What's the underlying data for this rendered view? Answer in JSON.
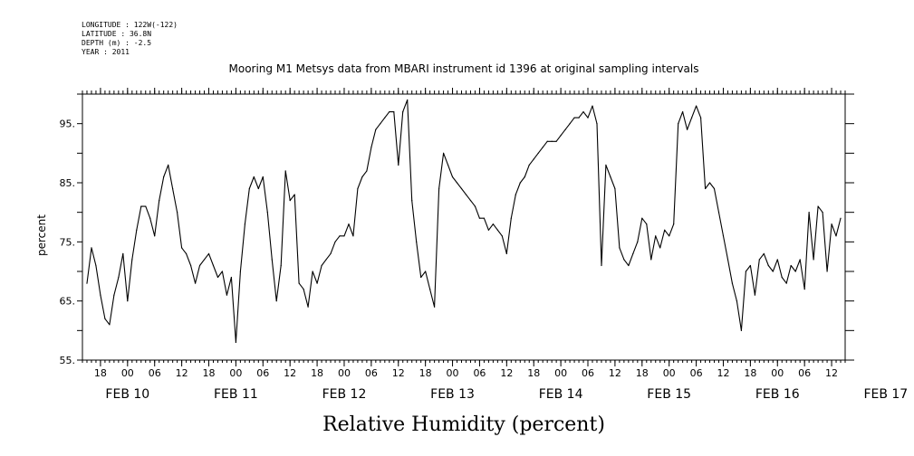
{
  "metadata": {
    "longitude": "LONGITUDE : 122W(-122)",
    "latitude": "LATITUDE : 36.8N",
    "depth": "DEPTH (m) : -2.5",
    "year": "YEAR : 2011"
  },
  "chart_data": {
    "type": "line",
    "title": "Mooring M1 Metsys data from MBARI instrument id 1396 at original sampling intervals",
    "xlabel": "Relative Humidity (percent)",
    "ylabel": "percent",
    "ylim": [
      55,
      100
    ],
    "yticks": [
      55,
      65,
      75,
      85,
      95
    ],
    "ytick_labels": [
      "55.",
      "65.",
      "75.",
      "85.",
      "95."
    ],
    "xlim": [
      14,
      183
    ],
    "xticks": [
      18,
      24,
      30,
      36,
      42,
      48,
      54,
      60,
      66,
      72,
      78,
      84,
      90,
      96,
      102,
      108,
      114,
      120,
      126,
      132,
      138,
      144,
      150,
      156,
      162,
      168,
      174,
      180
    ],
    "xtick_labels": [
      "18",
      "00",
      "06",
      "12",
      "18",
      "00",
      "06",
      "12",
      "18",
      "00",
      "06",
      "12",
      "18",
      "00",
      "06",
      "12",
      "18",
      "00",
      "06",
      "12",
      "18",
      "00",
      "06",
      "12",
      "18",
      "00",
      "06",
      "12"
    ],
    "day_labels": [
      {
        "x": 24,
        "label": "FEB 10"
      },
      {
        "x": 48,
        "label": "FEB 11"
      },
      {
        "x": 72,
        "label": "FEB 12"
      },
      {
        "x": 96,
        "label": "FEB 13"
      },
      {
        "x": 120,
        "label": "FEB 14"
      },
      {
        "x": 144,
        "label": "FEB 15"
      },
      {
        "x": 168,
        "label": "FEB 16"
      },
      {
        "x": 192,
        "label": "FEB 17"
      }
    ],
    "x_units": "hours after 00:00 FEB 10",
    "series": [
      {
        "x": [
          15,
          16,
          17,
          18,
          19,
          20,
          21,
          22,
          23,
          24,
          25,
          26,
          27,
          28,
          29,
          30,
          31,
          32,
          33,
          34,
          35,
          36,
          37,
          38,
          39,
          40,
          41,
          42,
          43,
          44,
          45,
          46,
          47,
          48,
          49,
          50,
          51,
          52,
          53,
          54,
          55,
          56,
          57,
          58,
          59,
          60,
          61,
          62,
          63,
          64,
          65,
          66,
          67,
          68,
          69,
          70,
          71,
          72,
          73,
          74,
          75,
          76,
          77,
          78,
          79,
          80,
          81,
          82,
          83,
          84,
          85,
          86,
          87,
          88,
          89,
          90,
          91,
          92,
          93,
          94,
          95,
          96,
          97,
          98,
          99,
          100,
          101,
          102,
          103,
          104,
          105,
          106,
          107,
          108,
          109,
          110,
          111,
          112,
          113,
          114,
          115,
          116,
          117,
          118,
          119,
          120,
          121,
          122,
          123,
          124,
          125,
          126,
          127,
          128,
          129,
          130,
          131,
          132,
          133,
          134,
          135,
          136,
          137,
          138,
          139,
          140,
          141,
          142,
          143,
          144,
          145,
          146,
          147,
          148,
          149,
          150,
          151,
          152,
          153,
          154,
          155,
          156,
          157,
          158,
          159,
          160,
          161,
          162,
          163,
          164,
          165,
          166,
          167,
          168,
          169,
          170,
          171,
          172,
          173,
          174,
          175,
          176,
          177,
          178,
          179,
          180,
          181,
          182
        ],
        "y": [
          68,
          74,
          71,
          66,
          62,
          61,
          66,
          69,
          73,
          65,
          72,
          77,
          81,
          81,
          79,
          76,
          82,
          86,
          88,
          84,
          80,
          74,
          73,
          71,
          68,
          71,
          72,
          73,
          71,
          69,
          70,
          66,
          69,
          58,
          70,
          78,
          84,
          86,
          84,
          86,
          80,
          72,
          65,
          71,
          87,
          82,
          83,
          68,
          67,
          64,
          70,
          68,
          71,
          72,
          73,
          75,
          76,
          76,
          78,
          76,
          84,
          86,
          87,
          91,
          94,
          95,
          96,
          97,
          97,
          88,
          97,
          99,
          82,
          75,
          69,
          70,
          67,
          64,
          84,
          90,
          88,
          86,
          85,
          84,
          83,
          82,
          81,
          79,
          79,
          77,
          78,
          77,
          76,
          73,
          79,
          83,
          85,
          86,
          88,
          89,
          90,
          91,
          92,
          92,
          92,
          93,
          94,
          95,
          96,
          96,
          97,
          96,
          98,
          95,
          71,
          88,
          86,
          84,
          74,
          72,
          71,
          73,
          75,
          79,
          78,
          72,
          76,
          74,
          77,
          76,
          78,
          95,
          97,
          94,
          96,
          98,
          96,
          84,
          85,
          84,
          80,
          76,
          72,
          68,
          65,
          60,
          70,
          71,
          66,
          72,
          73,
          71,
          70,
          72,
          69,
          68,
          71,
          70,
          72,
          67,
          80,
          72,
          81,
          80,
          70,
          78,
          76,
          79
        ]
      }
    ]
  }
}
